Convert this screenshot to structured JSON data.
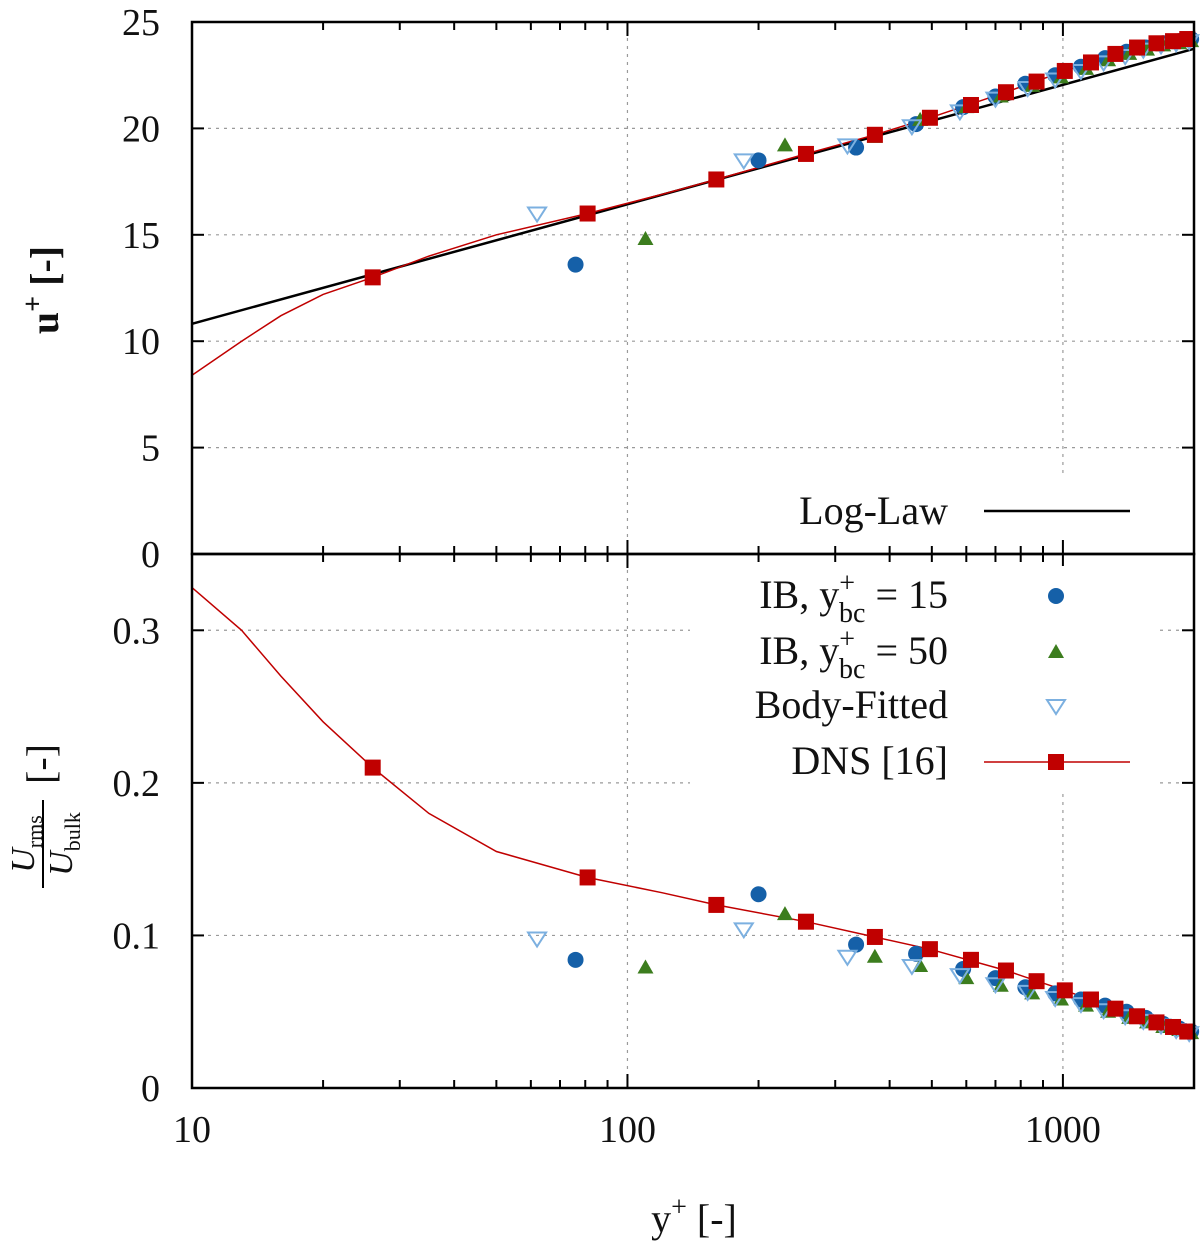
{
  "chart_data": [
    {
      "type": "scatter",
      "panel": "top",
      "ylabel": "u",
      "ylabel_sup": "+",
      "ylabel_unit": "[-]",
      "xscale": "log",
      "xlim": [
        10,
        2000
      ],
      "ylim": [
        0,
        25
      ],
      "yticks": [
        0,
        5,
        10,
        15,
        20,
        25
      ],
      "grid": true,
      "legend": {
        "position": "bottom-right",
        "entries": [
          {
            "label": "Log-Law",
            "style": "line"
          }
        ]
      },
      "log_law": {
        "kappa": 0.41,
        "B": 5.2,
        "label": "Log-Law"
      },
      "series": [
        {
          "name": "IB, y+bc = 15",
          "marker": "circle",
          "color": "#1560a8",
          "x": [
            76,
            200,
            335,
            460,
            590,
            700,
            820,
            960,
            1100,
            1250,
            1400,
            1550,
            1700,
            1850,
            1970
          ],
          "y": [
            13.6,
            18.5,
            19.1,
            20.2,
            21.0,
            21.5,
            22.1,
            22.5,
            22.9,
            23.3,
            23.6,
            23.8,
            24.0,
            24.1,
            24.2
          ]
        },
        {
          "name": "IB, y+bc = 50",
          "marker": "triangle-up",
          "color": "#3c7d1e",
          "x": [
            110,
            230,
            370,
            470,
            600,
            720,
            850,
            990,
            1130,
            1270,
            1420,
            1560,
            1700,
            1850,
            1970
          ],
          "y": [
            14.8,
            19.2,
            19.6,
            20.4,
            21.0,
            21.5,
            22.0,
            22.4,
            22.8,
            23.2,
            23.5,
            23.7,
            23.9,
            24.0,
            24.1
          ]
        },
        {
          "name": "Body-Fitted",
          "marker": "triangle-down-open",
          "color": "#7cb0e0",
          "x": [
            62,
            185,
            320,
            450,
            580,
            700,
            830,
            960,
            1100,
            1240,
            1390,
            1530,
            1680,
            1820,
            1950
          ],
          "y": [
            16.0,
            18.5,
            19.2,
            20.1,
            20.8,
            21.4,
            21.9,
            22.3,
            22.7,
            23.1,
            23.4,
            23.7,
            23.9,
            24.0,
            24.1
          ]
        },
        {
          "name": "DNS [16]",
          "marker": "square",
          "color": "#c00000",
          "x": [
            26,
            81,
            160,
            257,
            370,
            495,
            615,
            740,
            870,
            1010,
            1160,
            1320,
            1480,
            1640,
            1790,
            1930
          ],
          "y": [
            13.0,
            16.0,
            17.6,
            18.8,
            19.7,
            20.5,
            21.1,
            21.7,
            22.2,
            22.7,
            23.1,
            23.5,
            23.8,
            24.0,
            24.1,
            24.2
          ]
        }
      ],
      "dns_curve": {
        "x": [
          10,
          13,
          16,
          20,
          26,
          35,
          50,
          81,
          120,
          160,
          257,
          370,
          495,
          740,
          1010,
          1320,
          1640,
          2000
        ],
        "y": [
          8.4,
          10.0,
          11.2,
          12.2,
          13.0,
          14.0,
          15.0,
          16.0,
          16.9,
          17.6,
          18.8,
          19.7,
          20.5,
          21.7,
          22.7,
          23.5,
          24.0,
          24.3
        ]
      }
    },
    {
      "type": "scatter",
      "panel": "bottom",
      "xlabel": "y",
      "xlabel_sup": "+",
      "xlabel_unit": "[-]",
      "ylabel_num": "U",
      "ylabel_num_sub": "rms",
      "ylabel_den": "U",
      "ylabel_den_sub": "bulk",
      "ylabel_unit": "[-]",
      "xscale": "log",
      "xlim": [
        10,
        2000
      ],
      "ylim": [
        0,
        0.35
      ],
      "yticks": [
        0,
        0.1,
        0.2,
        0.3
      ],
      "ytick_labels": [
        "0",
        "0.1",
        "0.2",
        "0.3"
      ],
      "xticks": [
        10,
        100,
        1000
      ],
      "xtick_labels": [
        "10",
        "100",
        "1000"
      ],
      "grid": true,
      "legend": {
        "position": "top-right",
        "entries": [
          {
            "label": "IB, y",
            "sup": "+",
            "sub": "bc",
            "suffix": " = 15",
            "marker": "circle"
          },
          {
            "label": "IB, y",
            "sup": "+",
            "sub": "bc",
            "suffix": " = 50",
            "marker": "triangle-up"
          },
          {
            "label": "Body-Fitted",
            "sup": "",
            "sub": "",
            "suffix": "",
            "marker": "triangle-down-open"
          },
          {
            "label": "DNS [16]",
            "sup": "",
            "sub": "",
            "suffix": "",
            "marker": "square-line"
          }
        ]
      },
      "series": [
        {
          "name": "IB, y+bc = 15",
          "marker": "circle",
          "color": "#1560a8",
          "x": [
            76,
            200,
            335,
            460,
            590,
            700,
            820,
            960,
            1100,
            1250,
            1400,
            1550,
            1700,
            1850,
            1970
          ],
          "y": [
            0.084,
            0.127,
            0.094,
            0.088,
            0.078,
            0.072,
            0.066,
            0.062,
            0.058,
            0.054,
            0.05,
            0.046,
            0.042,
            0.039,
            0.037
          ]
        },
        {
          "name": "IB, y+bc = 50",
          "marker": "triangle-up",
          "color": "#3c7d1e",
          "x": [
            110,
            230,
            370,
            470,
            600,
            720,
            850,
            990,
            1130,
            1270,
            1420,
            1560,
            1700,
            1850,
            1970
          ],
          "y": [
            0.079,
            0.114,
            0.086,
            0.08,
            0.072,
            0.067,
            0.062,
            0.058,
            0.054,
            0.05,
            0.046,
            0.043,
            0.04,
            0.038,
            0.036
          ]
        },
        {
          "name": "Body-Fitted",
          "marker": "triangle-down-open",
          "color": "#7cb0e0",
          "x": [
            62,
            185,
            320,
            450,
            580,
            700,
            830,
            960,
            1100,
            1240,
            1390,
            1530,
            1680,
            1820,
            1950
          ],
          "y": [
            0.098,
            0.104,
            0.086,
            0.08,
            0.074,
            0.068,
            0.063,
            0.059,
            0.055,
            0.051,
            0.047,
            0.044,
            0.041,
            0.038,
            0.036
          ]
        },
        {
          "name": "DNS [16]",
          "marker": "square",
          "color": "#c00000",
          "x": [
            26,
            81,
            160,
            257,
            370,
            495,
            615,
            740,
            870,
            1010,
            1160,
            1320,
            1480,
            1640,
            1790,
            1930
          ],
          "y": [
            0.21,
            0.138,
            0.12,
            0.109,
            0.099,
            0.091,
            0.084,
            0.077,
            0.07,
            0.064,
            0.058,
            0.052,
            0.047,
            0.043,
            0.04,
            0.037
          ]
        }
      ],
      "dns_curve": {
        "x": [
          10,
          13,
          16,
          20,
          26,
          35,
          50,
          81,
          120,
          160,
          257,
          370,
          495,
          740,
          1010,
          1320,
          1640,
          2000
        ],
        "y": [
          0.328,
          0.3,
          0.27,
          0.24,
          0.21,
          0.18,
          0.155,
          0.138,
          0.128,
          0.12,
          0.109,
          0.099,
          0.091,
          0.077,
          0.064,
          0.052,
          0.043,
          0.034
        ]
      }
    }
  ]
}
